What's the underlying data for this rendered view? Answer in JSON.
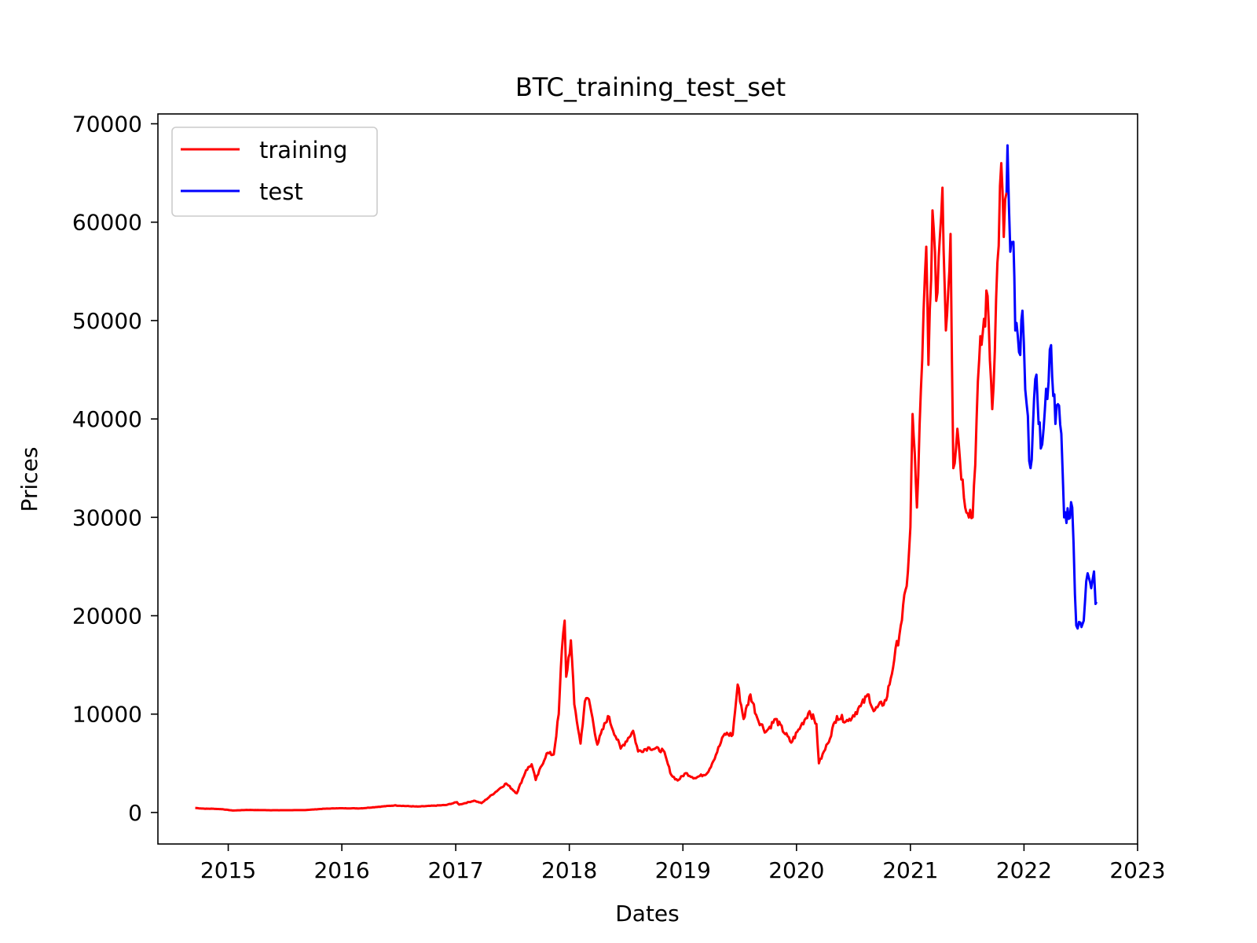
{
  "chart_data": {
    "type": "line",
    "title": "BTC_training_test_set",
    "xlabel": "Dates",
    "ylabel": "Prices",
    "xlim": [
      "2014-05-20",
      "2023-01-01"
    ],
    "ylim": [
      -3200,
      71000
    ],
    "x_ticks": [
      "2015",
      "2016",
      "2017",
      "2018",
      "2019",
      "2020",
      "2021",
      "2022",
      "2023"
    ],
    "y_ticks": [
      "0",
      "10000",
      "20000",
      "30000",
      "40000",
      "50000",
      "60000",
      "70000"
    ],
    "legend_position": "upper-left",
    "series": [
      {
        "name": "training",
        "color": "#ff0000",
        "points": [
          [
            "2014-09-17",
            460
          ],
          [
            "2014-10-15",
            390
          ],
          [
            "2014-11-15",
            380
          ],
          [
            "2014-12-15",
            330
          ],
          [
            "2015-01-15",
            200
          ],
          [
            "2015-03-01",
            260
          ],
          [
            "2015-06-01",
            230
          ],
          [
            "2015-09-01",
            240
          ],
          [
            "2015-11-05",
            380
          ],
          [
            "2015-12-15",
            430
          ],
          [
            "2016-03-01",
            420
          ],
          [
            "2016-06-18",
            720
          ],
          [
            "2016-09-01",
            600
          ],
          [
            "2016-12-01",
            760
          ],
          [
            "2017-01-05",
            1050
          ],
          [
            "2017-01-12",
            800
          ],
          [
            "2017-03-01",
            1200
          ],
          [
            "2017-03-25",
            950
          ],
          [
            "2017-05-25",
            2500
          ],
          [
            "2017-06-12",
            2950
          ],
          [
            "2017-07-16",
            1950
          ],
          [
            "2017-08-15",
            4300
          ],
          [
            "2017-09-02",
            4900
          ],
          [
            "2017-09-15",
            3300
          ],
          [
            "2017-10-20",
            6000
          ],
          [
            "2017-11-12",
            5900
          ],
          [
            "2017-11-28",
            10000
          ],
          [
            "2017-12-08",
            16500
          ],
          [
            "2017-12-17",
            19500
          ],
          [
            "2017-12-22",
            13800
          ],
          [
            "2018-01-06",
            17500
          ],
          [
            "2018-01-17",
            11000
          ],
          [
            "2018-02-06",
            7000
          ],
          [
            "2018-02-20",
            11300
          ],
          [
            "2018-03-05",
            11500
          ],
          [
            "2018-04-01",
            6900
          ],
          [
            "2018-05-05",
            9800
          ],
          [
            "2018-06-15",
            6500
          ],
          [
            "2018-07-25",
            8300
          ],
          [
            "2018-08-10",
            6200
          ],
          [
            "2018-09-15",
            6600
          ],
          [
            "2018-10-30",
            6300
          ],
          [
            "2018-11-25",
            3800
          ],
          [
            "2018-12-15",
            3250
          ],
          [
            "2019-01-10",
            4000
          ],
          [
            "2019-02-08",
            3500
          ],
          [
            "2019-03-20",
            4000
          ],
          [
            "2019-04-05",
            5000
          ],
          [
            "2019-05-15",
            8000
          ],
          [
            "2019-06-10",
            7900
          ],
          [
            "2019-06-26",
            13000
          ],
          [
            "2019-07-15",
            9500
          ],
          [
            "2019-08-06",
            12000
          ],
          [
            "2019-08-28",
            9600
          ],
          [
            "2019-09-25",
            8200
          ],
          [
            "2019-10-26",
            9500
          ],
          [
            "2019-12-15",
            7100
          ],
          [
            "2020-01-15",
            8800
          ],
          [
            "2020-02-12",
            10300
          ],
          [
            "2020-03-05",
            9000
          ],
          [
            "2020-03-13",
            5000
          ],
          [
            "2020-04-10",
            7000
          ],
          [
            "2020-05-10",
            9800
          ],
          [
            "2020-06-15",
            9300
          ],
          [
            "2020-07-25",
            10800
          ],
          [
            "2020-08-20",
            12000
          ],
          [
            "2020-09-05",
            10300
          ],
          [
            "2020-10-15",
            11400
          ],
          [
            "2020-11-10",
            15500
          ],
          [
            "2020-12-01",
            19000
          ],
          [
            "2020-12-20",
            23000
          ],
          [
            "2021-01-01",
            29000
          ],
          [
            "2021-01-08",
            40500
          ],
          [
            "2021-01-22",
            31000
          ],
          [
            "2021-02-08",
            46000
          ],
          [
            "2021-02-21",
            57500
          ],
          [
            "2021-02-28",
            45500
          ],
          [
            "2021-03-13",
            61200
          ],
          [
            "2021-03-25",
            52000
          ],
          [
            "2021-04-14",
            63500
          ],
          [
            "2021-04-25",
            49000
          ],
          [
            "2021-05-10",
            58800
          ],
          [
            "2021-05-19",
            35000
          ],
          [
            "2021-06-01",
            39000
          ],
          [
            "2021-06-22",
            32000
          ],
          [
            "2021-07-20",
            30000
          ],
          [
            "2021-08-10",
            46000
          ],
          [
            "2021-09-06",
            52500
          ],
          [
            "2021-09-21",
            41000
          ],
          [
            "2021-10-20",
            66000
          ],
          [
            "2021-10-28",
            58500
          ],
          [
            "2021-11-06",
            63000
          ]
        ]
      },
      {
        "name": "test",
        "color": "#0000ff",
        "points": [
          [
            "2021-11-06",
            63000
          ],
          [
            "2021-11-09",
            67800
          ],
          [
            "2021-11-18",
            57000
          ],
          [
            "2021-11-28",
            58000
          ],
          [
            "2021-12-04",
            49000
          ],
          [
            "2021-12-20",
            46500
          ],
          [
            "2021-12-27",
            51000
          ],
          [
            "2022-01-05",
            43000
          ],
          [
            "2022-01-22",
            35000
          ],
          [
            "2022-02-10",
            44500
          ],
          [
            "2022-02-24",
            37000
          ],
          [
            "2022-03-05",
            39000
          ],
          [
            "2022-03-29",
            47500
          ],
          [
            "2022-04-12",
            39500
          ],
          [
            "2022-04-20",
            41500
          ],
          [
            "2022-05-01",
            38500
          ],
          [
            "2022-05-10",
            30000
          ],
          [
            "2022-06-05",
            31000
          ],
          [
            "2022-06-18",
            19000
          ],
          [
            "2022-07-01",
            19300
          ],
          [
            "2022-07-12",
            19500
          ],
          [
            "2022-07-20",
            23500
          ],
          [
            "2022-07-29",
            23800
          ],
          [
            "2022-08-05",
            22800
          ],
          [
            "2022-08-14",
            24500
          ],
          [
            "2022-08-19",
            21200
          ],
          [
            "2022-08-22",
            21400
          ]
        ]
      }
    ]
  }
}
